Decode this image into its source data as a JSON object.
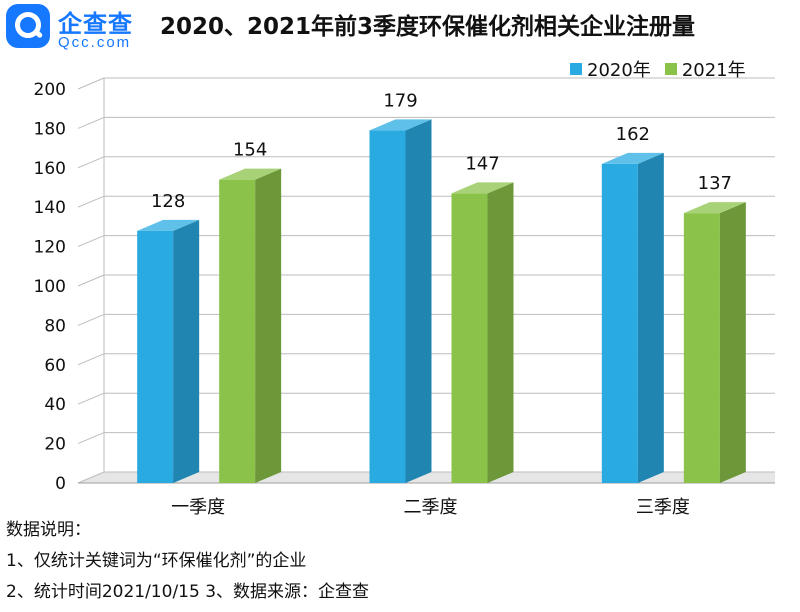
{
  "logo": {
    "icon": "qcc-logo-icon",
    "cn": "企查查",
    "en": "Qcc.com"
  },
  "title": "2020、2021年前3季度环保催化剂相关企业注册量",
  "legend": {
    "items": [
      {
        "label": "2020年",
        "color": "#29abe2"
      },
      {
        "label": "2021年",
        "color": "#8bc34a"
      }
    ]
  },
  "notes": {
    "heading": "数据说明：",
    "line1": "1、仅统计关键词为“环保催化剂”的企业",
    "line2": "2、统计时间2021/10/15   3、数据来源：企查查"
  },
  "chart_data": {
    "type": "bar",
    "title": "2020、2021年前3季度环保催化剂相关企业注册量",
    "xlabel": "",
    "ylabel": "",
    "categories": [
      "一季度",
      "二季度",
      "三季度"
    ],
    "series": [
      {
        "name": "2020年",
        "values": [
          128,
          179,
          162
        ],
        "color": "#29abe2"
      },
      {
        "name": "2021年",
        "values": [
          154,
          147,
          137
        ],
        "color": "#8bc34a"
      }
    ],
    "ylim": [
      0,
      200
    ],
    "yticks": [
      0,
      20,
      40,
      60,
      80,
      100,
      120,
      140,
      160,
      180,
      200
    ],
    "grid": true,
    "legend_position": "top-right",
    "data_labels": true,
    "style": "3d-bars"
  }
}
